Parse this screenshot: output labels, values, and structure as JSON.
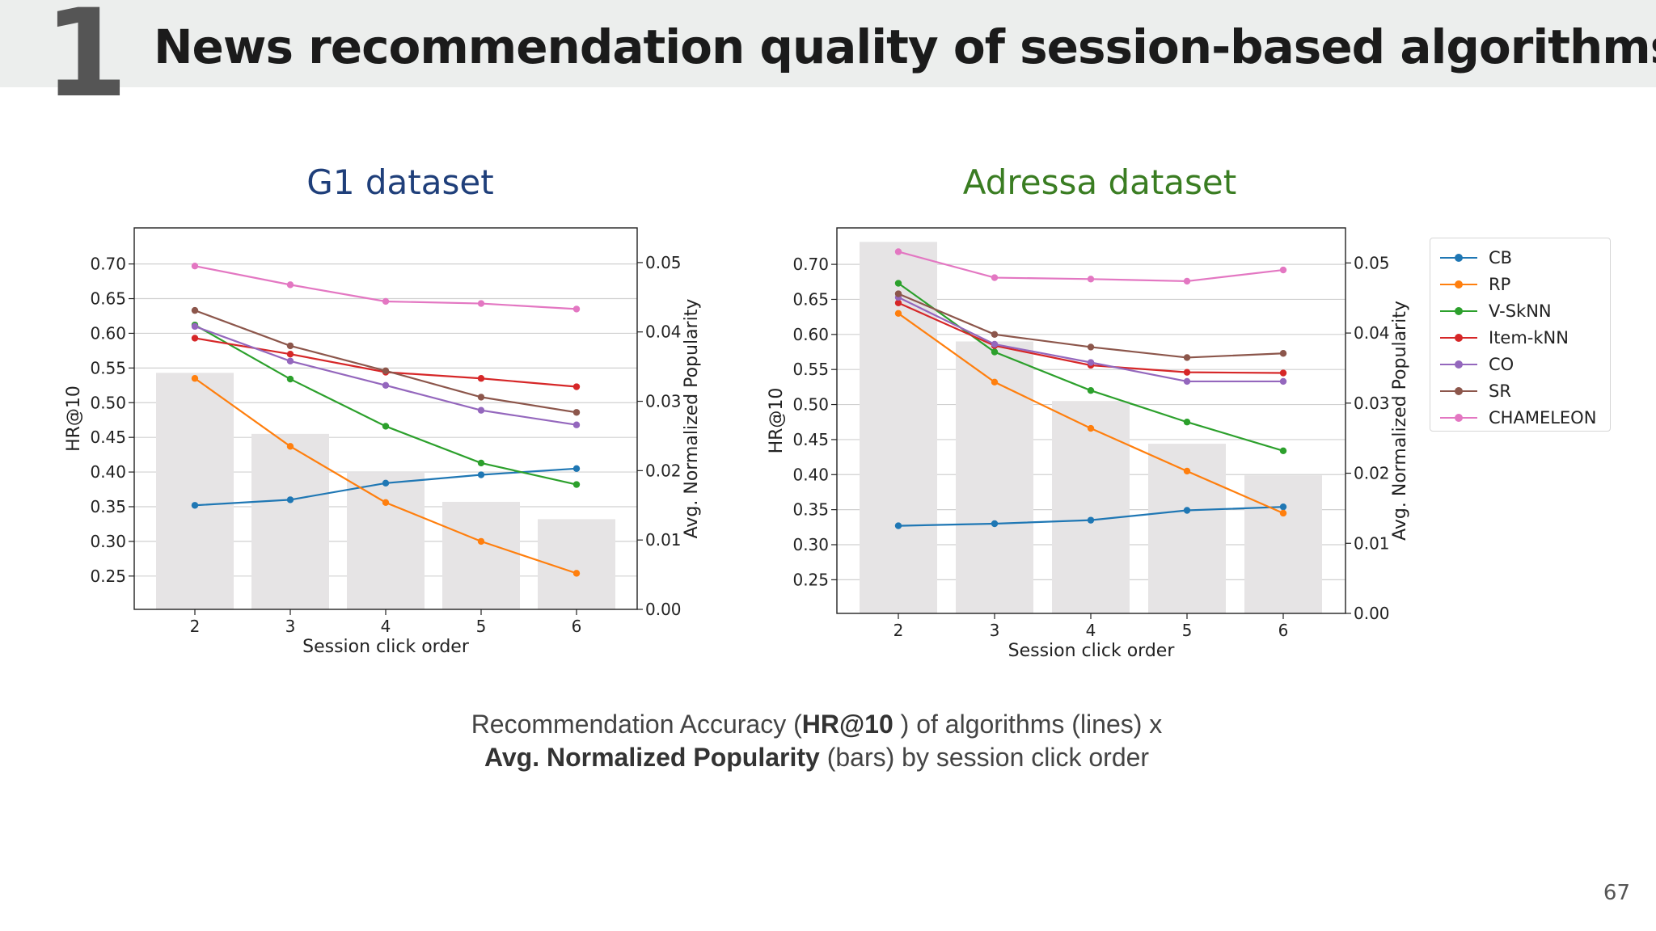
{
  "slide": {
    "number": "1",
    "title": "News recommendation quality of session-based algorithms",
    "page_number": "67",
    "caption_line1_pre": "Recommendation Accuracy (",
    "caption_line1_bold": "HR@10",
    "caption_line1_post": " ) of algorithms (lines) x",
    "caption_line2_bold": "Avg. Normalized Popularity",
    "caption_line2_post": " (bars) by session click order"
  },
  "colors": {
    "CB": "#1f77b4",
    "RP": "#ff7f0e",
    "V-SkNN": "#2ca02c",
    "Item-kNN": "#d62728",
    "CO": "#9467bd",
    "SR": "#8c564b",
    "CHAMELEON": "#e377c2",
    "bars": "#e6e4e5"
  },
  "legend": [
    "CB",
    "RP",
    "V-SkNN",
    "Item-kNN",
    "CO",
    "SR",
    "CHAMELEON"
  ],
  "chart_data": [
    {
      "type": "line",
      "title": "G1 dataset",
      "xlabel": "Session click order",
      "ylabel": "HR@10",
      "y2label": "Avg. Normalized Popularity",
      "x": [
        2,
        3,
        4,
        5,
        6
      ],
      "x_ticks": [
        "2",
        "3",
        "4",
        "5",
        "6"
      ],
      "y_ticks": [
        "0.25",
        "0.30",
        "0.35",
        "0.40",
        "0.45",
        "0.50",
        "0.55",
        "0.60",
        "0.65",
        "0.70"
      ],
      "y_tick_values": [
        0.25,
        0.3,
        0.35,
        0.4,
        0.45,
        0.5,
        0.55,
        0.6,
        0.65,
        0.7
      ],
      "y2_ticks": [
        "0.00",
        "0.01",
        "0.02",
        "0.03",
        "0.04",
        "0.05"
      ],
      "y2_tick_values": [
        0.0,
        0.01,
        0.02,
        0.03,
        0.04,
        0.05
      ],
      "ylim": [
        0.202,
        0.752
      ],
      "y2lim": [
        0.0,
        0.055
      ],
      "grid": true,
      "bars": {
        "name": "Avg. Normalized Popularity",
        "values": [
          0.0341,
          0.0253,
          0.0198,
          0.0155,
          0.013
        ]
      },
      "series": [
        {
          "name": "CB",
          "values": [
            0.352,
            0.36,
            0.384,
            0.396,
            0.405
          ]
        },
        {
          "name": "RP",
          "values": [
            0.535,
            0.437,
            0.356,
            0.3,
            0.254
          ]
        },
        {
          "name": "V-SkNN",
          "values": [
            0.612,
            0.534,
            0.466,
            0.413,
            0.382
          ]
        },
        {
          "name": "Item-kNN",
          "values": [
            0.593,
            0.57,
            0.544,
            0.535,
            0.523
          ]
        },
        {
          "name": "CO",
          "values": [
            0.61,
            0.56,
            0.525,
            0.489,
            0.468
          ]
        },
        {
          "name": "SR",
          "values": [
            0.633,
            0.582,
            0.546,
            0.508,
            0.486
          ]
        },
        {
          "name": "CHAMELEON",
          "values": [
            0.697,
            0.67,
            0.646,
            0.643,
            0.635
          ]
        }
      ]
    },
    {
      "type": "line",
      "title": "Adressa dataset",
      "xlabel": "Session click order",
      "ylabel": "HR@10",
      "y2label": "Avg. Normalized Popularity",
      "x": [
        2,
        3,
        4,
        5,
        6
      ],
      "x_ticks": [
        "2",
        "3",
        "4",
        "5",
        "6"
      ],
      "y_ticks": [
        "0.25",
        "0.30",
        "0.35",
        "0.40",
        "0.45",
        "0.50",
        "0.55",
        "0.60",
        "0.65",
        "0.70"
      ],
      "y_tick_values": [
        0.25,
        0.3,
        0.35,
        0.4,
        0.45,
        0.5,
        0.55,
        0.6,
        0.65,
        0.7
      ],
      "y2_ticks": [
        "0.00",
        "0.01",
        "0.02",
        "0.03",
        "0.04",
        "0.05"
      ],
      "y2_tick_values": [
        0.0,
        0.01,
        0.02,
        0.03,
        0.04,
        0.05
      ],
      "ylim": [
        0.202,
        0.752
      ],
      "y2lim": [
        0.0,
        0.055
      ],
      "grid": true,
      "bars": {
        "name": "Avg. Normalized Popularity",
        "values": [
          0.053,
          0.0388,
          0.0303,
          0.0242,
          0.0197
        ]
      },
      "series": [
        {
          "name": "CB",
          "values": [
            0.327,
            0.33,
            0.335,
            0.349,
            0.354
          ]
        },
        {
          "name": "RP",
          "values": [
            0.63,
            0.532,
            0.466,
            0.405,
            0.345
          ]
        },
        {
          "name": "V-SkNN",
          "values": [
            0.673,
            0.575,
            0.52,
            0.475,
            0.434
          ]
        },
        {
          "name": "Item-kNN",
          "values": [
            0.645,
            0.584,
            0.556,
            0.546,
            0.545
          ]
        },
        {
          "name": "CO",
          "values": [
            0.653,
            0.586,
            0.56,
            0.533,
            0.533
          ]
        },
        {
          "name": "SR",
          "values": [
            0.658,
            0.6,
            0.582,
            0.567,
            0.573
          ]
        },
        {
          "name": "CHAMELEON",
          "values": [
            0.718,
            0.681,
            0.679,
            0.676,
            0.692
          ]
        }
      ]
    }
  ]
}
